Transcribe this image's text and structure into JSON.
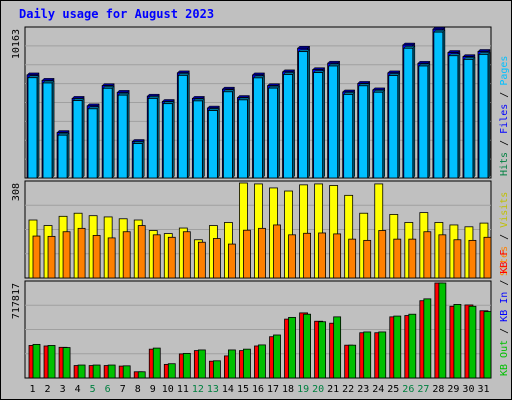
{
  "chart_data": {
    "type": "bar",
    "title": "Daily usage for August 2023",
    "categories": [
      "1",
      "2",
      "3",
      "4",
      "5",
      "6",
      "7",
      "8",
      "9",
      "10",
      "11",
      "12",
      "13",
      "14",
      "15",
      "16",
      "17",
      "18",
      "19",
      "20",
      "21",
      "22",
      "23",
      "24",
      "25",
      "26",
      "27",
      "28",
      "29",
      "30",
      "31"
    ],
    "weekend_days": [
      "5",
      "6",
      "12",
      "13",
      "19",
      "20",
      "26",
      "27"
    ],
    "panels": [
      {
        "id": "top",
        "max_label": "10163",
        "ymax": 10163,
        "side_labels": [
          {
            "text": "Pages",
            "color": "#00c0ff"
          },
          {
            "text": "Files",
            "color": "#0000ff"
          },
          {
            "text": "Hits",
            "color": "#008040"
          }
        ],
        "series": [
          {
            "name": "Hits",
            "color": "#006400",
            "values": [
              0,
              0,
              0,
              0,
              0,
              0,
              0,
              0,
              0,
              0,
              0,
              0,
              0,
              0,
              0,
              0,
              0,
              0,
              0,
              0,
              0,
              0,
              0,
              0,
              0,
              0,
              0,
              0,
              0,
              0,
              0
            ]
          },
          {
            "name": "Files",
            "color": "#0000ff",
            "values": [
              7030,
              6660,
              3100,
              5430,
              4920,
              6300,
              5840,
              2490,
              5580,
              5220,
              7170,
              5430,
              4770,
              6060,
              5490,
              7030,
              6300,
              7240,
              8850,
              7390,
              7830,
              5870,
              6450,
              6010,
              7170,
              9070,
              7820,
              10150,
              8560,
              8280,
              8630
            ]
          },
          {
            "name": "Pages",
            "color": "#00c0ff",
            "values": [
              6840,
              6480,
              2920,
              5280,
              4720,
              6120,
              5650,
              2350,
              5430,
              5070,
              7000,
              5260,
              4600,
              5880,
              5330,
              6830,
              6130,
              7060,
              8620,
              7190,
              7640,
              5700,
              6290,
              5850,
              6990,
              8850,
              7640,
              9950,
              8340,
              8090,
              8430
            ]
          }
        ]
      },
      {
        "id": "middle",
        "max_label": "308",
        "ymax": 308,
        "side_labels": [
          {
            "text": "Visits",
            "color": "#c0c000"
          },
          {
            "text": "Sites",
            "color": "#ff8000"
          }
        ],
        "series": [
          {
            "name": "Visits",
            "color": "#ffff00",
            "values": [
              188,
              170,
              200,
              210,
              202,
              198,
              192,
              188,
              154,
              144,
              162,
              124,
              170,
              180,
              308,
              305,
              292,
              282,
              302,
              305,
              300,
              268,
              210,
              305,
              206,
              180,
              212,
              180,
              172,
              166,
              178
            ]
          },
          {
            "name": "Sites",
            "color": "#ff8000",
            "values": [
              136,
              135,
              150,
              161,
              138,
              130,
              150,
              170,
              140,
              132,
              150,
              116,
              128,
              110,
              155,
              161,
              172,
              140,
              145,
              146,
              143,
              126,
              122,
              154,
              126,
              126,
              150,
              140,
              124,
              122,
              132
            ]
          }
        ]
      },
      {
        "id": "bottom",
        "max_label": "717817",
        "ymax": 717817,
        "side_labels": [
          {
            "text": "KB F",
            "color": "#ff0000"
          },
          {
            "text": "KB In",
            "color": "#0000ff"
          },
          {
            "text": "KB Out",
            "color": "#00c000"
          }
        ],
        "series": [
          {
            "name": "KB F",
            "color": "#ff0000",
            "values": [
              246000,
              242000,
              232000,
              94000,
              94000,
              94000,
              90000,
              47000,
              218000,
              103000,
              182000,
              207000,
              127000,
              167000,
              207000,
              242000,
              312000,
              445000,
              492000,
              429000,
              414000,
              248000,
              342000,
              342000,
              462000,
              472000,
              584000,
              717817,
              542000,
              552000,
              508000
            ]
          },
          {
            "name": "KB Out",
            "color": "#00c000",
            "values": [
              254000,
              246000,
              230000,
              98000,
              98000,
              98000,
              92000,
              47000,
              226000,
              108000,
              186000,
              212000,
              130000,
              212000,
              218000,
              250000,
              325000,
              458000,
              482000,
              425000,
              462000,
              248000,
              348000,
              348000,
              468000,
              482000,
              598000,
              717817,
              556000,
              542000,
              502000
            ]
          }
        ]
      }
    ]
  }
}
